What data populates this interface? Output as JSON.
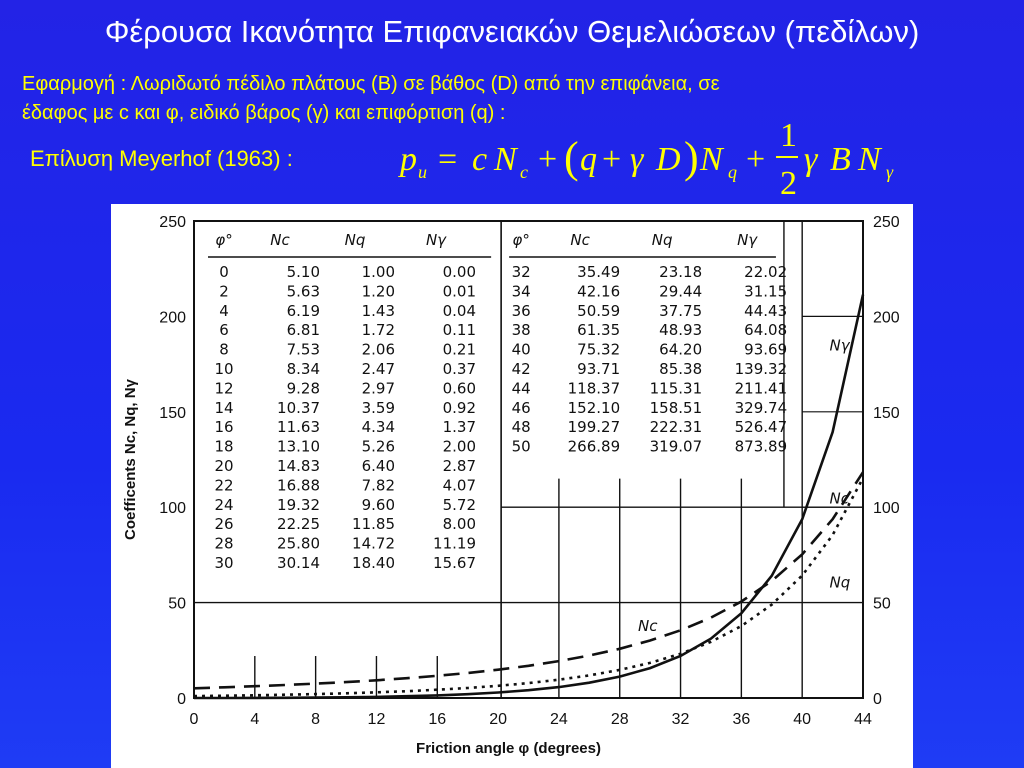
{
  "title": "Φέρουσα Ικανότητα Επιφανειακών Θεμελιώσεων (πεδίλων)",
  "application": {
    "label": "Εφαρμογή :",
    "text_line1": "Λωριδωτό πέδιλο πλάτους (Β) σε βάθος (D) από την επιφάνεια, σε",
    "text_line2": "έδαφος με c και φ, ειδικό βάρος (γ) και επιφόρτιση (q) :"
  },
  "solution_label": "Επίλυση Meyerhof (1963) :",
  "formula": {
    "p": "p",
    "u": "u",
    "eq": "=",
    "c": "c",
    "N": "N",
    "sub_c": "c",
    "plus": "+",
    "q": "q",
    "gamma": "γ",
    "D": "D",
    "sub_q": "q",
    "num": "1",
    "den": "2",
    "B": "B",
    "sub_gamma": "γ"
  },
  "chart_data": {
    "type": "line",
    "xlabel": "Friction angle φ (degrees)",
    "ylabel": "Coefficents Nc, Nq, Nγ",
    "xlim": [
      0,
      44
    ],
    "ylim": [
      0,
      250
    ],
    "x_ticks": [
      0,
      4,
      8,
      12,
      16,
      20,
      24,
      28,
      32,
      36,
      40,
      44
    ],
    "y_ticks": [
      0,
      50,
      100,
      150,
      200,
      250
    ],
    "table_headers": [
      "φ°",
      "Nc",
      "Nq",
      "Nγ"
    ],
    "table": [
      [
        "0",
        "5.10",
        "1.00",
        "0.00"
      ],
      [
        "2",
        "5.63",
        "1.20",
        "0.01"
      ],
      [
        "4",
        "6.19",
        "1.43",
        "0.04"
      ],
      [
        "6",
        "6.81",
        "1.72",
        "0.11"
      ],
      [
        "8",
        "7.53",
        "2.06",
        "0.21"
      ],
      [
        "10",
        "8.34",
        "2.47",
        "0.37"
      ],
      [
        "12",
        "9.28",
        "2.97",
        "0.60"
      ],
      [
        "14",
        "10.37",
        "3.59",
        "0.92"
      ],
      [
        "16",
        "11.63",
        "4.34",
        "1.37"
      ],
      [
        "18",
        "13.10",
        "5.26",
        "2.00"
      ],
      [
        "20",
        "14.83",
        "6.40",
        "2.87"
      ],
      [
        "22",
        "16.88",
        "7.82",
        "4.07"
      ],
      [
        "24",
        "19.32",
        "9.60",
        "5.72"
      ],
      [
        "26",
        "22.25",
        "11.85",
        "8.00"
      ],
      [
        "28",
        "25.80",
        "14.72",
        "11.19"
      ],
      [
        "30",
        "30.14",
        "18.40",
        "15.67"
      ],
      [
        "32",
        "35.49",
        "23.18",
        "22.02"
      ],
      [
        "34",
        "42.16",
        "29.44",
        "31.15"
      ],
      [
        "36",
        "50.59",
        "37.75",
        "44.43"
      ],
      [
        "38",
        "61.35",
        "48.93",
        "64.08"
      ],
      [
        "40",
        "75.32",
        "64.20",
        "93.69"
      ],
      [
        "42",
        "93.71",
        "85.38",
        "139.32"
      ],
      [
        "44",
        "118.37",
        "115.31",
        "211.41"
      ],
      [
        "46",
        "152.10",
        "158.51",
        "329.74"
      ],
      [
        "48",
        "199.27",
        "222.31",
        "526.47"
      ],
      [
        "50",
        "266.89",
        "319.07",
        "873.89"
      ]
    ],
    "series": [
      {
        "name": "Nc",
        "style": "dashed",
        "x": [
          0,
          2,
          4,
          6,
          8,
          10,
          12,
          14,
          16,
          18,
          20,
          22,
          24,
          26,
          28,
          30,
          32,
          34,
          36,
          38,
          40,
          42,
          44
        ],
        "y": [
          5.1,
          5.63,
          6.19,
          6.81,
          7.53,
          8.34,
          9.28,
          10.37,
          11.63,
          13.1,
          14.83,
          16.88,
          19.32,
          22.25,
          25.8,
          30.14,
          35.49,
          42.16,
          50.59,
          61.35,
          75.32,
          93.71,
          118.37
        ]
      },
      {
        "name": "Nq",
        "style": "dotted",
        "x": [
          0,
          2,
          4,
          6,
          8,
          10,
          12,
          14,
          16,
          18,
          20,
          22,
          24,
          26,
          28,
          30,
          32,
          34,
          36,
          38,
          40,
          42,
          44
        ],
        "y": [
          1.0,
          1.2,
          1.43,
          1.72,
          2.06,
          2.47,
          2.97,
          3.59,
          4.34,
          5.26,
          6.4,
          7.82,
          9.6,
          11.85,
          14.72,
          18.4,
          23.18,
          29.44,
          37.75,
          48.93,
          64.2,
          85.38,
          115.31
        ]
      },
      {
        "name": "Nγ",
        "style": "solid",
        "x": [
          0,
          2,
          4,
          6,
          8,
          10,
          12,
          14,
          16,
          18,
          20,
          22,
          24,
          26,
          28,
          30,
          32,
          34,
          36,
          38,
          40,
          42,
          44
        ],
        "y": [
          0.0,
          0.01,
          0.04,
          0.11,
          0.21,
          0.37,
          0.6,
          0.92,
          1.37,
          2.0,
          2.87,
          4.07,
          5.72,
          8.0,
          11.19,
          15.67,
          22.02,
          31.15,
          44.43,
          64.08,
          93.69,
          139.32,
          211.41
        ]
      }
    ],
    "curve_labels": [
      {
        "text": "Nγ",
        "series": "Nγ"
      },
      {
        "text": "Nc",
        "series": "Nc"
      },
      {
        "text": "Nq",
        "series": "Nq"
      },
      {
        "text": "Nc",
        "series": "Nc"
      }
    ]
  }
}
